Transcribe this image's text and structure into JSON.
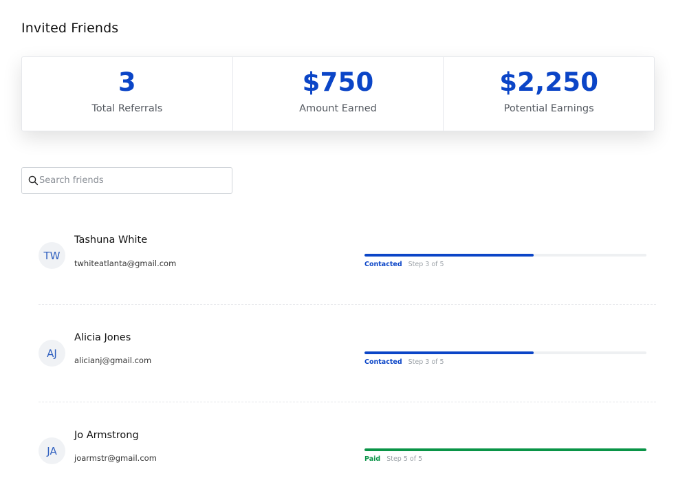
{
  "page": {
    "title": "Invited Friends"
  },
  "stats": [
    {
      "value": "3",
      "label": "Total Referrals"
    },
    {
      "value": "$750",
      "label": "Amount Earned"
    },
    {
      "value": "$2,250",
      "label": "Potential Earnings"
    }
  ],
  "search": {
    "placeholder": "Search friends",
    "value": "",
    "icon": "search-icon"
  },
  "friends": [
    {
      "initials": "TW",
      "name": "Tashuna White",
      "email": "twhiteatlanta@gmail.com",
      "status": "Contacted",
      "step": "Step 3 of 5",
      "progress": 0.6,
      "color": "#0b45c7"
    },
    {
      "initials": "AJ",
      "name": "Alicia Jones",
      "email": "alicianj@gmail.com",
      "status": "Contacted",
      "step": "Step 3 of 5",
      "progress": 0.6,
      "color": "#0b45c7"
    },
    {
      "initials": "JA",
      "name": "Jo Armstrong",
      "email": "joarmstr@gmail.com",
      "status": "Paid",
      "step": "Step 5 of 5",
      "progress": 1.0,
      "color": "#0a9447"
    }
  ],
  "colors": {
    "accent": "#0b45c7",
    "paid": "#0a9447"
  }
}
